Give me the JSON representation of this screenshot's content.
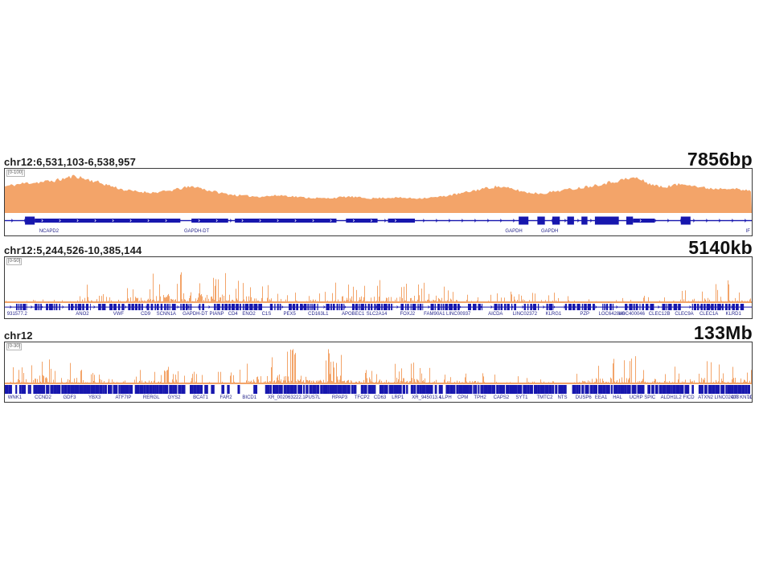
{
  "colors": {
    "signal": "#F3A469",
    "gene": "#1717AE",
    "gene_label": "#26268C",
    "panel_border": "#3A3A3A",
    "header_text": "#1C1C1C"
  },
  "chart_data": [
    {
      "type": "area",
      "locus": "chr12:6,531,103-6,538,957",
      "span_label": "7856bp",
      "scale_label": "[0-100]",
      "render": "smooth",
      "seed": 11,
      "ylim": [
        0,
        100
      ],
      "envelope": [
        [
          0,
          0.6
        ],
        [
          0.01,
          0.63
        ],
        [
          0.03,
          0.68
        ],
        [
          0.05,
          0.7
        ],
        [
          0.07,
          0.74
        ],
        [
          0.085,
          0.8
        ],
        [
          0.095,
          0.84
        ],
        [
          0.105,
          0.78
        ],
        [
          0.12,
          0.72
        ],
        [
          0.14,
          0.62
        ],
        [
          0.16,
          0.52
        ],
        [
          0.18,
          0.48
        ],
        [
          0.2,
          0.46
        ],
        [
          0.22,
          0.5
        ],
        [
          0.24,
          0.57
        ],
        [
          0.255,
          0.6
        ],
        [
          0.27,
          0.52
        ],
        [
          0.29,
          0.45
        ],
        [
          0.31,
          0.4
        ],
        [
          0.34,
          0.37
        ],
        [
          0.37,
          0.4
        ],
        [
          0.4,
          0.35
        ],
        [
          0.43,
          0.33
        ],
        [
          0.46,
          0.37
        ],
        [
          0.49,
          0.33
        ],
        [
          0.52,
          0.35
        ],
        [
          0.55,
          0.33
        ],
        [
          0.58,
          0.36
        ],
        [
          0.61,
          0.44
        ],
        [
          0.64,
          0.55
        ],
        [
          0.66,
          0.6
        ],
        [
          0.68,
          0.54
        ],
        [
          0.7,
          0.46
        ],
        [
          0.72,
          0.44
        ],
        [
          0.74,
          0.5
        ],
        [
          0.77,
          0.57
        ],
        [
          0.8,
          0.66
        ],
        [
          0.83,
          0.76
        ],
        [
          0.845,
          0.8
        ],
        [
          0.86,
          0.68
        ],
        [
          0.88,
          0.58
        ],
        [
          0.9,
          0.64
        ],
        [
          0.915,
          0.66
        ],
        [
          0.93,
          0.58
        ],
        [
          0.95,
          0.55
        ],
        [
          0.97,
          0.57
        ],
        [
          0.985,
          0.52
        ],
        [
          1,
          0.5
        ]
      ],
      "gene_track": {
        "style": "transcript",
        "boxes": [
          [
            0.027,
            0.04
          ],
          [
            0.688,
            0.701
          ],
          [
            0.713,
            0.723
          ],
          [
            0.733,
            0.743
          ],
          [
            0.753,
            0.762
          ],
          [
            0.772,
            0.78
          ],
          [
            0.79,
            0.822
          ],
          [
            0.832,
            0.841
          ],
          [
            0.905,
            0.918
          ]
        ],
        "bars": [
          [
            0.04,
            0.235
          ],
          [
            0.25,
            0.299
          ],
          [
            0.308,
            0.444
          ],
          [
            0.457,
            0.499
          ],
          [
            0.513,
            0.549
          ],
          [
            0.841,
            0.87
          ]
        ]
      },
      "gene_labels": [
        [
          "NCAPD2",
          0.046
        ],
        [
          "GAPDH-DT",
          0.24
        ],
        [
          "GAPDH",
          0.67
        ],
        [
          "GAPDH",
          0.718
        ],
        [
          "IF",
          0.992
        ]
      ]
    },
    {
      "type": "bar",
      "locus": "chr12:5,244,526-10,385,144",
      "span_label": "5140kb",
      "scale_label": "[0-50]",
      "render": "spikes",
      "seed": 7,
      "ylim": [
        0,
        50
      ],
      "envelope": [
        [
          0,
          0.06
        ],
        [
          0.04,
          0.08
        ],
        [
          0.07,
          0.1
        ],
        [
          0.1,
          0.2
        ],
        [
          0.11,
          0.48
        ],
        [
          0.12,
          0.15
        ],
        [
          0.14,
          0.25
        ],
        [
          0.16,
          0.45
        ],
        [
          0.18,
          0.55
        ],
        [
          0.2,
          0.65
        ],
        [
          0.22,
          0.75
        ],
        [
          0.245,
          0.97
        ],
        [
          0.26,
          0.7
        ],
        [
          0.28,
          0.6
        ],
        [
          0.3,
          0.72
        ],
        [
          0.32,
          0.55
        ],
        [
          0.34,
          0.45
        ],
        [
          0.36,
          0.35
        ],
        [
          0.39,
          0.22
        ],
        [
          0.42,
          0.28
        ],
        [
          0.45,
          0.5
        ],
        [
          0.48,
          0.55
        ],
        [
          0.51,
          0.48
        ],
        [
          0.54,
          0.45
        ],
        [
          0.57,
          0.78
        ],
        [
          0.59,
          0.35
        ],
        [
          0.62,
          0.25
        ],
        [
          0.65,
          0.22
        ],
        [
          0.68,
          0.28
        ],
        [
          0.71,
          0.25
        ],
        [
          0.74,
          0.22
        ],
        [
          0.77,
          0.16
        ],
        [
          0.8,
          0.13
        ],
        [
          0.83,
          0.14
        ],
        [
          0.86,
          0.16
        ],
        [
          0.89,
          0.22
        ],
        [
          0.92,
          0.3
        ],
        [
          0.95,
          0.45
        ],
        [
          0.97,
          0.5
        ],
        [
          1,
          0.35
        ]
      ],
      "gene_track": {
        "style": "clusters",
        "clusters": [
          [
            0.015,
            0.03
          ],
          [
            0.04,
            0.05
          ],
          [
            0.055,
            0.075
          ],
          [
            0.085,
            0.115
          ],
          [
            0.125,
            0.135
          ],
          [
            0.14,
            0.16
          ],
          [
            0.165,
            0.185
          ],
          [
            0.19,
            0.23
          ],
          [
            0.235,
            0.25
          ],
          [
            0.26,
            0.268
          ],
          [
            0.28,
            0.345
          ],
          [
            0.355,
            0.37
          ],
          [
            0.38,
            0.42
          ],
          [
            0.43,
            0.455
          ],
          [
            0.465,
            0.52
          ],
          [
            0.53,
            0.56
          ],
          [
            0.57,
            0.61
          ],
          [
            0.62,
            0.64
          ],
          [
            0.655,
            0.685
          ],
          [
            0.695,
            0.715
          ],
          [
            0.725,
            0.735
          ],
          [
            0.75,
            0.79
          ],
          [
            0.8,
            0.815
          ],
          [
            0.83,
            0.87
          ],
          [
            0.88,
            0.905
          ],
          [
            0.92,
            0.99
          ]
        ]
      },
      "gene_labels": [
        [
          "931577.2",
          0.003
        ],
        [
          "ANO2",
          0.095
        ],
        [
          "VWF",
          0.145
        ],
        [
          "CD9",
          0.182
        ],
        [
          "SCNN1A",
          0.203
        ],
        [
          "GAPDH-DT",
          0.238
        ],
        [
          "PIANP",
          0.274
        ],
        [
          "CD4",
          0.299
        ],
        [
          "ENO2",
          0.318
        ],
        [
          "C1S",
          0.344
        ],
        [
          "PEX5",
          0.373
        ],
        [
          "CD163L1",
          0.406
        ],
        [
          "APOBEC1",
          0.451
        ],
        [
          "SLC2A14",
          0.484
        ],
        [
          "FOXJ2",
          0.529
        ],
        [
          "FAM90A1",
          0.561
        ],
        [
          "LINC00937",
          0.591
        ],
        [
          "AICDA",
          0.647
        ],
        [
          "LINC02372",
          0.68
        ],
        [
          "KLRG1",
          0.724
        ],
        [
          "PZP",
          0.77
        ],
        [
          "LOC642846",
          0.795
        ],
        [
          "LOC400046",
          0.822
        ],
        [
          "CLEC12B",
          0.862
        ],
        [
          "CLEC9A",
          0.897
        ],
        [
          "CLEC1A",
          0.93
        ],
        [
          "KLRD1",
          0.965
        ]
      ]
    },
    {
      "type": "bar",
      "locus": "chr12",
      "span_label": "133Mb",
      "scale_label": "[0-30]",
      "render": "spikes",
      "seed": 23,
      "ylim": [
        0,
        30
      ],
      "envelope": [
        [
          0,
          0.35
        ],
        [
          0.02,
          0.45
        ],
        [
          0.04,
          0.6
        ],
        [
          0.055,
          0.8
        ],
        [
          0.07,
          0.55
        ],
        [
          0.09,
          0.5
        ],
        [
          0.1,
          0.55
        ],
        [
          0.12,
          0.4
        ],
        [
          0.145,
          0.48
        ],
        [
          0.17,
          0.35
        ],
        [
          0.19,
          0.38
        ],
        [
          0.21,
          0.48
        ],
        [
          0.23,
          0.4
        ],
        [
          0.25,
          0.3
        ],
        [
          0.27,
          0.28
        ],
        [
          0.29,
          0.32
        ],
        [
          0.31,
          0.35
        ],
        [
          0.33,
          0.55
        ],
        [
          0.35,
          0.7
        ],
        [
          0.37,
          0.85
        ],
        [
          0.39,
          0.95
        ],
        [
          0.41,
          0.9
        ],
        [
          0.43,
          0.85
        ],
        [
          0.45,
          0.75
        ],
        [
          0.47,
          0.65
        ],
        [
          0.49,
          0.55
        ],
        [
          0.51,
          0.5
        ],
        [
          0.53,
          0.6
        ],
        [
          0.55,
          0.5
        ],
        [
          0.57,
          0.45
        ],
        [
          0.59,
          0.35
        ],
        [
          0.61,
          0.3
        ],
        [
          0.63,
          0.28
        ],
        [
          0.66,
          0.22
        ],
        [
          0.69,
          0.2
        ],
        [
          0.72,
          0.22
        ],
        [
          0.75,
          0.3
        ],
        [
          0.78,
          0.45
        ],
        [
          0.8,
          0.55
        ],
        [
          0.82,
          0.72
        ],
        [
          0.84,
          0.65
        ],
        [
          0.86,
          0.75
        ],
        [
          0.88,
          0.55
        ],
        [
          0.9,
          0.45
        ],
        [
          0.92,
          0.5
        ],
        [
          0.94,
          0.55
        ],
        [
          0.96,
          0.45
        ],
        [
          0.98,
          0.55
        ],
        [
          1,
          0.45
        ]
      ],
      "gene_track": {
        "style": "band",
        "sparse": [
          [
            0.258,
            0.345
          ],
          [
            0.565,
            0.585
          ]
        ]
      },
      "gene_labels": [
        [
          "WNK1",
          0.004
        ],
        [
          "CCND2",
          0.04
        ],
        [
          "GDF3",
          0.078
        ],
        [
          "YBX3",
          0.112
        ],
        [
          "ATF7IP",
          0.148
        ],
        [
          "RERGL",
          0.185
        ],
        [
          "GYS2",
          0.218
        ],
        [
          "BCAT1",
          0.252
        ],
        [
          "FAR2",
          0.288
        ],
        [
          "BICD1",
          0.318
        ],
        [
          "XR_002063222.1",
          0.352
        ],
        [
          "PUS7L",
          0.402
        ],
        [
          "RPAP3",
          0.438
        ],
        [
          "TFCP2",
          0.468
        ],
        [
          "CD63",
          0.494
        ],
        [
          "LRP1",
          0.518
        ],
        [
          "XR_945013.4",
          0.545
        ],
        [
          "LLPH",
          0.582
        ],
        [
          "CPM",
          0.606
        ],
        [
          "TPH2",
          0.628
        ],
        [
          "CAPS2",
          0.654
        ],
        [
          "SYT1",
          0.684
        ],
        [
          "TMTC2",
          0.712
        ],
        [
          "NTS",
          0.74
        ],
        [
          "DUSP6",
          0.764
        ],
        [
          "EEA1",
          0.79
        ],
        [
          "HAL",
          0.814
        ],
        [
          "UCRP",
          0.836
        ],
        [
          "SPIC",
          0.856
        ],
        [
          "ALDH1L2",
          0.878
        ],
        [
          "FICD",
          0.908
        ],
        [
          "ATXN2",
          0.928
        ],
        [
          "LINC02403",
          0.95
        ],
        [
          "CIT",
          0.972
        ],
        [
          "KNTC1",
          0.984
        ],
        [
          "LINC00944",
          0.994
        ]
      ]
    }
  ]
}
